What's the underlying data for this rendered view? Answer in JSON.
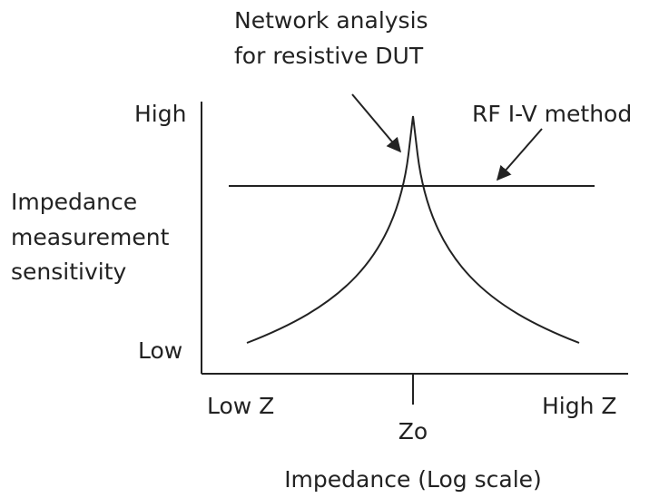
{
  "annotations": {
    "network_analysis": [
      "Network analysis",
      "for resistive DUT"
    ],
    "rf_iv": "RF I-V method"
  },
  "y_axis": {
    "high": "High",
    "low": "Low",
    "label": [
      "Impedance",
      "measurement",
      "sensitivity"
    ]
  },
  "x_axis": {
    "low": "Low Z",
    "mid": "Zo",
    "high": "High Z",
    "label": "Impedance (Log scale)"
  }
}
